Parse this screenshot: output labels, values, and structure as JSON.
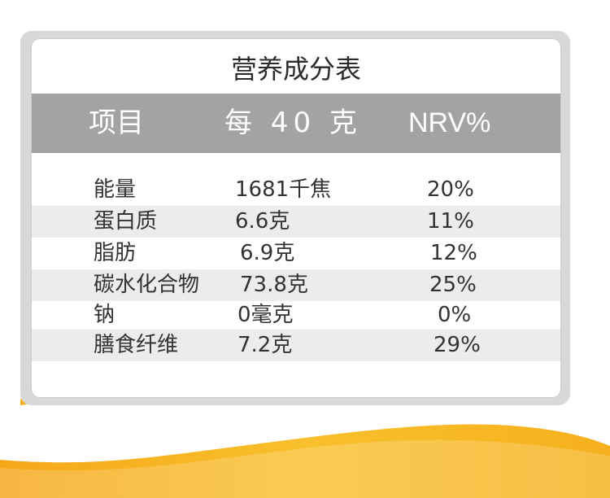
{
  "table": {
    "title": "营养成分表",
    "headers": [
      "项目",
      "每 40 克",
      "NRV%"
    ],
    "rows": [
      {
        "item": "能量",
        "amount": "1681千焦",
        "nrv": "20%"
      },
      {
        "item": "蛋白质",
        "amount": "6.6克",
        "nrv": "11%"
      },
      {
        "item": "脂肪",
        "amount": "6.9克",
        "nrv": "12%"
      },
      {
        "item": "碳水化合物",
        "amount": "73.8克",
        "nrv": "25%"
      },
      {
        "item": "钠",
        "amount": "0毫克",
        "nrv": "0%"
      },
      {
        "item": "膳食纤维",
        "amount": "7.2克",
        "nrv": "29%"
      }
    ]
  },
  "colors": {
    "header_bg": "#a3a3a3",
    "row_shade": "#ececec",
    "wave_yellow": "#f7b51c"
  }
}
